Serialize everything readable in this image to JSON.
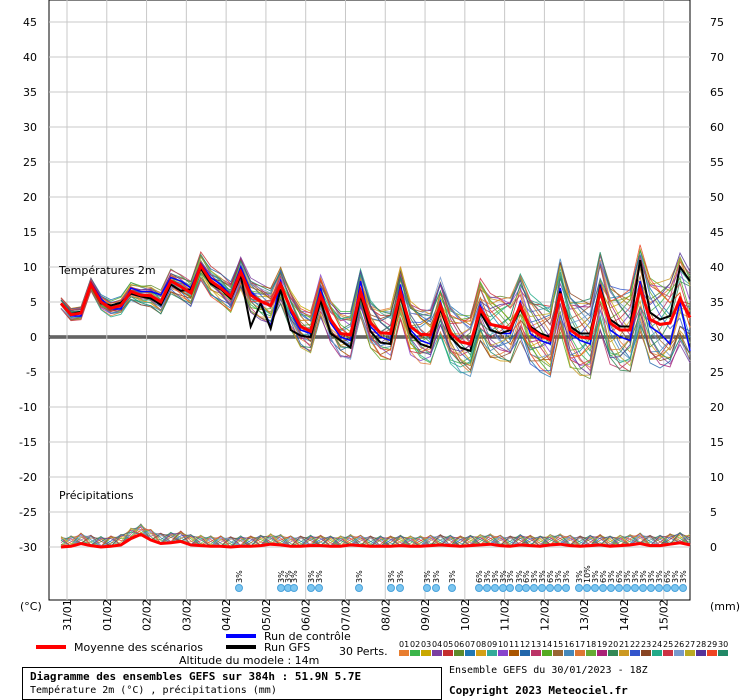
{
  "chart_data": {
    "type": "line",
    "left_axis": {
      "min": -30,
      "max": 45,
      "ticks": [
        45,
        40,
        35,
        30,
        25,
        20,
        15,
        10,
        5,
        0,
        -5,
        -10,
        -15,
        -20,
        -25,
        -30
      ],
      "unit": "(°C)"
    },
    "right_axis": {
      "min": 0,
      "max": 75,
      "ticks": [
        75,
        70,
        65,
        60,
        55,
        50,
        45,
        40,
        35,
        30,
        25,
        20,
        15,
        10,
        5,
        0
      ],
      "unit": "(mm)"
    },
    "x_labels": [
      "31/01",
      "01/02",
      "02/02",
      "03/02",
      "04/02",
      "05/02",
      "06/02",
      "07/02",
      "08/02",
      "09/02",
      "10/02",
      "11/02",
      "12/02",
      "13/02",
      "14/02",
      "15/02"
    ],
    "temp_label": "Températures 2m",
    "precip_label": "Précipitations",
    "mean_temperature": [
      4.8,
      3.2,
      3.4,
      7.5,
      5.0,
      4.1,
      4.5,
      6.5,
      6.0,
      5.9,
      5.0,
      8.0,
      7.2,
      6.3,
      10.2,
      8.0,
      7.0,
      5.8,
      9.3,
      6.0,
      5.1,
      4.5,
      7.5,
      4.0,
      1.5,
      0.8,
      6.0,
      2.5,
      0.5,
      0.3,
      6.5,
      2.0,
      0.6,
      0.5,
      6.4,
      1.5,
      0.4,
      0.3,
      4.5,
      0.6,
      -0.7,
      -1.0,
      4.0,
      1.8,
      1.5,
      1.2,
      4.5,
      1.2,
      0.2,
      -0.4,
      6.2,
      1.0,
      0.0,
      -0.2,
      6.5,
      2.0,
      1.0,
      1.0,
      7.0,
      2.5,
      1.8,
      2.0,
      5.5,
      2.8
    ],
    "control_run": [
      4.8,
      3.0,
      3.0,
      7.8,
      5.5,
      4.0,
      4.0,
      7.0,
      6.5,
      6.5,
      6.0,
      8.5,
      8.0,
      7.0,
      10.5,
      8.5,
      7.5,
      6.0,
      10.0,
      6.5,
      5.0,
      1.5,
      8.0,
      3.5,
      1.0,
      0.5,
      7.0,
      2.0,
      0.0,
      -0.5,
      8.0,
      1.5,
      0.0,
      -0.5,
      7.5,
      1.0,
      -0.5,
      -1.0,
      5.0,
      0.0,
      -1.5,
      -2.0,
      4.5,
      1.0,
      0.5,
      0.5,
      5.0,
      0.5,
      -0.5,
      -1.0,
      7.0,
      0.5,
      -0.5,
      -1.0,
      7.5,
      1.0,
      0.0,
      -0.5,
      8.0,
      1.5,
      0.5,
      -1.0,
      5.0,
      -2.0
    ],
    "gfs_run": [
      4.8,
      3.3,
      3.6,
      7.4,
      4.8,
      4.5,
      4.9,
      6.2,
      5.8,
      5.5,
      4.6,
      7.5,
      6.6,
      6.8,
      9.8,
      7.6,
      6.8,
      5.5,
      8.8,
      1.5,
      4.8,
      1.2,
      6.8,
      1.0,
      0.2,
      0.0,
      5.2,
      0.5,
      -0.5,
      -1.5,
      6.0,
      0.8,
      -0.8,
      -1.0,
      6.0,
      0.5,
      -1.0,
      -1.5,
      4.0,
      0.0,
      -1.5,
      -2.0,
      3.5,
      1.0,
      0.5,
      1.0,
      4.0,
      1.5,
      0.5,
      0.0,
      6.5,
      1.5,
      0.5,
      0.5,
      7.0,
      2.5,
      1.5,
      1.5,
      11.0,
      3.5,
      2.5,
      3.0,
      10.0,
      8.0
    ],
    "mean_precip": [
      0.0,
      0.1,
      0.5,
      0.2,
      0.0,
      0.1,
      0.3,
      1.2,
      1.8,
      1.0,
      0.5,
      0.6,
      0.8,
      0.3,
      0.2,
      0.1,
      0.1,
      0.0,
      0.1,
      0.1,
      0.2,
      0.4,
      0.3,
      0.1,
      0.1,
      0.2,
      0.2,
      0.1,
      0.1,
      0.3,
      0.2,
      0.1,
      0.1,
      0.1,
      0.2,
      0.1,
      0.1,
      0.2,
      0.3,
      0.2,
      0.1,
      0.2,
      0.3,
      0.4,
      0.2,
      0.1,
      0.3,
      0.2,
      0.1,
      0.3,
      0.4,
      0.2,
      0.1,
      0.2,
      0.3,
      0.1,
      0.2,
      0.3,
      0.5,
      0.2,
      0.2,
      0.4,
      0.6,
      0.3
    ],
    "member_count": "30 Perts.",
    "member_ids": [
      "01",
      "02",
      "03",
      "04",
      "05",
      "06",
      "07",
      "08",
      "09",
      "10",
      "11",
      "12",
      "13",
      "14",
      "15",
      "16",
      "17",
      "18",
      "19",
      "20",
      "21",
      "22",
      "23",
      "24",
      "25",
      "26",
      "27",
      "28",
      "29",
      "30"
    ],
    "member_colors": [
      "#e87d2f",
      "#3bb54a",
      "#c9a800",
      "#7b3fa0",
      "#c42e2e",
      "#5d8a2a",
      "#1f77b4",
      "#d4a017",
      "#33aa99",
      "#8844cc",
      "#aa5500",
      "#2266aa",
      "#bb3366",
      "#55aa22",
      "#996633",
      "#4488bb",
      "#dd7733",
      "#66aa33",
      "#aa2277",
      "#338855",
      "#cc9922",
      "#3355cc",
      "#884422",
      "#22aa88",
      "#cc3344",
      "#7799cc",
      "#bbaa22",
      "#553399",
      "#ee4422",
      "#228866"
    ],
    "precip_markers": [
      "3%",
      "3%",
      "3%",
      "3%",
      "3%",
      "3%",
      "3%",
      "3%",
      "3%",
      "3%",
      "3%",
      "3%",
      "6%",
      "3%",
      "3%",
      "3%",
      "3%",
      "3%",
      "6%",
      "3%",
      "3%",
      "6%",
      "3%",
      "3%",
      "3%",
      "10%",
      "3%",
      "6%",
      "3%",
      "6%",
      "3%",
      "3%",
      "3%",
      "3%",
      "3%",
      "6%",
      "3%",
      "3%",
      "3%",
      "6%",
      "3%",
      "3%",
      "3%",
      "10%",
      "3%",
      "6%"
    ],
    "legend": {
      "mean": "Moyenne des scénarios",
      "control": "Run de contrôle",
      "gfs": "Run GFS",
      "mean_color": "#ff0000",
      "control_color": "#0000ff",
      "gfs_color": "#000000"
    },
    "grid": true
  },
  "footer": {
    "altitude": "Altitude du modele : 14m",
    "title": "Diagramme des ensembles GEFS sur 384h : 51.9N 5.7E",
    "subtitle": "Température 2m (°C) , précipitations (mm)",
    "run_info": "Ensemble GEFS du 30/01/2023 - 18Z",
    "copyright": "Copyright 2023 Meteociel.fr"
  }
}
